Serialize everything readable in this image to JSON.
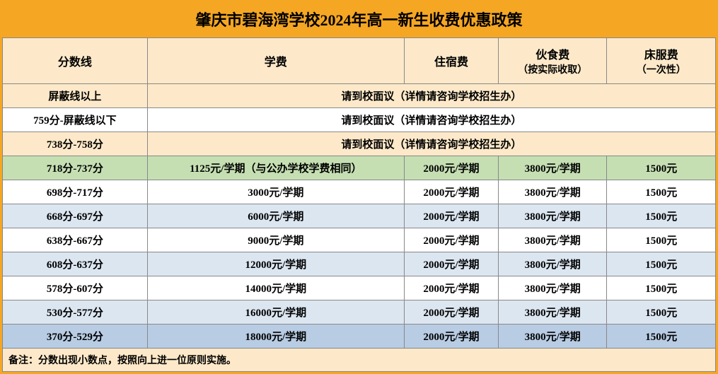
{
  "title": "肇庆市碧海湾学校2024年高一新生收费优惠政策",
  "headers": {
    "score": "分数线",
    "tuition": "学费",
    "dorm": "住宿费",
    "meal": "伙食费",
    "meal_sub": "（按实际收取）",
    "bed": "床服费",
    "bed_sub": "（一次性）"
  },
  "consult_text": "请到校面议（详情请咨询学校招生办）",
  "rows": [
    {
      "score": "屏蔽线以上",
      "merged": true,
      "cls": "row-cream"
    },
    {
      "score": "759分-屏蔽线以下",
      "merged": true,
      "cls": "row-white"
    },
    {
      "score": "738分-758分",
      "merged": true,
      "cls": "row-cream"
    },
    {
      "score": "718分-737分",
      "tuition": "1125元/学期（与公办学校学费相同）",
      "dorm": "2000元/学期",
      "meal": "3800元/学期",
      "bed": "1500元",
      "cls": "row-green"
    },
    {
      "score": "698分-717分",
      "tuition": "3000元/学期",
      "dorm": "2000元/学期",
      "meal": "3800元/学期",
      "bed": "1500元",
      "cls": "row-white"
    },
    {
      "score": "668分-697分",
      "tuition": "6000元/学期",
      "dorm": "2000元/学期",
      "meal": "3800元/学期",
      "bed": "1500元",
      "cls": "row-blue1"
    },
    {
      "score": "638分-667分",
      "tuition": "9000元/学期",
      "dorm": "2000元/学期",
      "meal": "3800元/学期",
      "bed": "1500元",
      "cls": "row-white"
    },
    {
      "score": "608分-637分",
      "tuition": "12000元/学期",
      "dorm": "2000元/学期",
      "meal": "3800元/学期",
      "bed": "1500元",
      "cls": "row-blue1"
    },
    {
      "score": "578分-607分",
      "tuition": "14000元/学期",
      "dorm": "2000元/学期",
      "meal": "3800元/学期",
      "bed": "1500元",
      "cls": "row-white"
    },
    {
      "score": "530分-577分",
      "tuition": "16000元/学期",
      "dorm": "2000元/学期",
      "meal": "3800元/学期",
      "bed": "1500元",
      "cls": "row-blue1"
    },
    {
      "score": "370分-529分",
      "tuition": "18000元/学期",
      "dorm": "2000元/学期",
      "meal": "3800元/学期",
      "bed": "1500元",
      "cls": "row-blue2"
    }
  ],
  "footer": "备注：分数出现小数点，按照向上进一位原则实施。",
  "colors": {
    "border_outer": "#f5a623",
    "header_bg": "#fde9c9",
    "green_bg": "#c5dfb3",
    "blue1_bg": "#dce6f1",
    "blue2_bg": "#b8cce4",
    "grid": "#888888"
  }
}
